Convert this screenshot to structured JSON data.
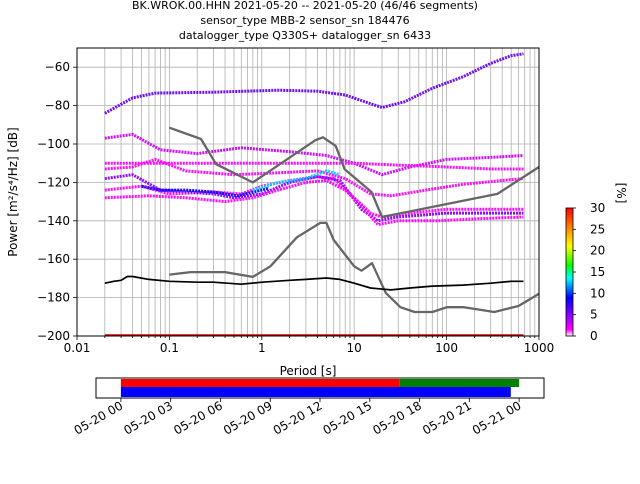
{
  "title": {
    "line1": "BK.WROK.00.HHN   2021-05-20 -- 2021-05-20  (46/46 segments)",
    "line2": "sensor_type MBB-2 sensor_sn 184476",
    "line3": "datalogger_type Q330S+ datalogger_sn 6433"
  },
  "chart_data": [
    {
      "type": "heatmap",
      "xlabel": "Period [s]",
      "ylabel": "Power [m²/s⁴/Hz] [dB]",
      "xscale": "log",
      "xlim": [
        0.01,
        1000
      ],
      "ylim": [
        -200,
        -50
      ],
      "xtick_labels": [
        "0.01",
        "0.1",
        "1",
        "10",
        "100",
        "1000"
      ],
      "ytick_labels": [
        "-60",
        "-80",
        "-100",
        "-120",
        "-140",
        "-160",
        "-180",
        "-200"
      ],
      "grid": true,
      "colorbar": {
        "label": "[%]",
        "range": [
          0,
          30
        ],
        "tick_labels": [
          "0",
          "5",
          "10",
          "15",
          "20",
          "25",
          "30"
        ],
        "colormap": [
          "#ffffff",
          "#ff00ff",
          "#0000ff",
          "#00ffff",
          "#00ff00",
          "#ffff00",
          "#ff7f00",
          "#ff0000"
        ]
      },
      "series": [
        {
          "role": "high noise model",
          "color": "#666666",
          "points": [
            [
              0.1,
              -91.5
            ],
            [
              0.22,
              -97.4
            ],
            [
              0.32,
              -110.5
            ],
            [
              0.8,
              -120
            ],
            [
              3.8,
              -98
            ],
            [
              4.6,
              -96.5
            ],
            [
              6.3,
              -101
            ],
            [
              7.9,
              -113.2
            ],
            [
              15.4,
              -125
            ],
            [
              20,
              -138
            ],
            [
              354.8,
              -126
            ],
            [
              1000,
              -112
            ]
          ]
        },
        {
          "role": "low noise model",
          "color": "#666666",
          "points": [
            [
              0.1,
              -168
            ],
            [
              0.17,
              -166.7
            ],
            [
              0.4,
              -166.7
            ],
            [
              0.8,
              -169.2
            ],
            [
              1.24,
              -163.7
            ],
            [
              2.4,
              -148.6
            ],
            [
              4.3,
              -141.1
            ],
            [
              5,
              -141.1
            ],
            [
              6,
              -150
            ],
            [
              10,
              -163.7
            ],
            [
              12,
              -166
            ],
            [
              15.6,
              -162.1
            ],
            [
              21.9,
              -177.5
            ],
            [
              31.6,
              -185
            ],
            [
              45,
              -187.5
            ],
            [
              70,
              -187.5
            ],
            [
              101,
              -185
            ],
            [
              154,
              -185
            ],
            [
              328,
              -187.5
            ],
            [
              600,
              -184.4
            ],
            [
              1000,
              -178
            ]
          ]
        },
        {
          "role": "mode",
          "color": "#000000",
          "points": [
            [
              0.02,
              -172.5
            ],
            [
              0.025,
              -171.5
            ],
            [
              0.03,
              -171
            ],
            [
              0.035,
              -169
            ],
            [
              0.04,
              -169
            ],
            [
              0.06,
              -170.5
            ],
            [
              0.1,
              -171.5
            ],
            [
              0.2,
              -172
            ],
            [
              0.3,
              -172
            ],
            [
              0.6,
              -173
            ],
            [
              1,
              -172
            ],
            [
              2,
              -171
            ],
            [
              3,
              -170.5
            ],
            [
              5,
              -169.8
            ],
            [
              7,
              -170.5
            ],
            [
              10,
              -172.5
            ],
            [
              15,
              -175
            ],
            [
              25,
              -176
            ],
            [
              40,
              -175
            ],
            [
              70,
              -174
            ],
            [
              150,
              -173.5
            ],
            [
              300,
              -172.5
            ],
            [
              500,
              -171.5
            ],
            [
              680,
              -171.5
            ]
          ]
        }
      ],
      "psd_bands": [
        {
          "color": "#6600ff",
          "points": [
            [
              0.02,
              -84
            ],
            [
              0.04,
              -76
            ],
            [
              0.07,
              -73.5
            ],
            [
              0.3,
              -73
            ],
            [
              1.5,
              -72
            ],
            [
              4,
              -72.5
            ],
            [
              8,
              -74.5
            ],
            [
              15,
              -79
            ],
            [
              20,
              -81
            ],
            [
              35,
              -78
            ],
            [
              70,
              -71
            ],
            [
              150,
              -65
            ],
            [
              300,
              -58
            ],
            [
              500,
              -54
            ],
            [
              680,
              -53
            ]
          ]
        },
        {
          "color": "#cc00ff",
          "points": [
            [
              0.02,
              -97
            ],
            [
              0.04,
              -95
            ],
            [
              0.08,
              -103
            ],
            [
              0.2,
              -105
            ],
            [
              0.6,
              -102
            ],
            [
              2,
              -104
            ],
            [
              5,
              -106
            ],
            [
              10,
              -110
            ],
            [
              20,
              -116
            ],
            [
              40,
              -112
            ],
            [
              100,
              -108
            ],
            [
              300,
              -107
            ],
            [
              680,
              -106
            ]
          ]
        },
        {
          "color": "#ff00ff",
          "points": [
            [
              0.02,
              -110
            ],
            [
              0.05,
              -110
            ],
            [
              0.2,
              -110
            ],
            [
              1,
              -110
            ],
            [
              5,
              -110
            ],
            [
              10,
              -110
            ],
            [
              30,
              -111
            ],
            [
              100,
              -112
            ],
            [
              300,
              -113
            ],
            [
              680,
              -113
            ]
          ]
        },
        {
          "color": "#ff00ff",
          "points": [
            [
              0.02,
              -113
            ],
            [
              0.04,
              -112
            ],
            [
              0.07,
              -108
            ],
            [
              0.15,
              -114
            ],
            [
              0.5,
              -116
            ],
            [
              1.5,
              -115
            ],
            [
              4,
              -114
            ],
            [
              8,
              -118
            ],
            [
              15,
              -126
            ],
            [
              25,
              -127
            ],
            [
              60,
              -124
            ],
            [
              150,
              -121
            ],
            [
              400,
              -119
            ],
            [
              680,
              -118
            ]
          ]
        },
        {
          "color": "#ff00ff",
          "points": [
            [
              0.02,
              -124
            ],
            [
              0.05,
              -122
            ],
            [
              0.1,
              -126
            ],
            [
              0.3,
              -125
            ],
            [
              0.6,
              -126
            ],
            [
              1,
              -122
            ],
            [
              2,
              -119
            ],
            [
              4,
              -117
            ],
            [
              6,
              -118
            ],
            [
              10,
              -128
            ],
            [
              15,
              -136
            ],
            [
              20,
              -138
            ],
            [
              40,
              -136
            ],
            [
              100,
              -134
            ],
            [
              300,
              -134
            ],
            [
              680,
              -134
            ]
          ]
        },
        {
          "color": "#8800ff",
          "points": [
            [
              0.02,
              -118
            ],
            [
              0.04,
              -116
            ],
            [
              0.08,
              -124
            ],
            [
              0.3,
              -126
            ],
            [
              0.5,
              -128
            ],
            [
              1,
              -126
            ],
            [
              2,
              -120
            ],
            [
              4,
              -117
            ],
            [
              7,
              -119
            ],
            [
              12,
              -134
            ],
            [
              18,
              -140
            ],
            [
              30,
              -138
            ],
            [
              100,
              -136
            ],
            [
              300,
              -136
            ],
            [
              680,
              -136
            ]
          ]
        },
        {
          "color": "#0000ff",
          "points": [
            [
              0.05,
              -122
            ],
            [
              0.08,
              -124
            ],
            [
              0.15,
              -124
            ],
            [
              0.3,
              -125
            ],
            [
              0.55,
              -127
            ],
            [
              1.2,
              -123
            ]
          ]
        },
        {
          "color": "#00ccff",
          "points": [
            [
              0.8,
              -124
            ],
            [
              1.5,
              -120
            ],
            [
              3,
              -118
            ],
            [
              5,
              -114
            ],
            [
              7,
              -116
            ]
          ]
        },
        {
          "color": "#ff00ff",
          "points": [
            [
              0.02,
              -128
            ],
            [
              0.06,
              -127
            ],
            [
              0.15,
              -128
            ],
            [
              0.4,
              -130
            ],
            [
              0.8,
              -128
            ],
            [
              1.5,
              -124
            ],
            [
              3,
              -120
            ],
            [
              5,
              -119
            ],
            [
              8,
              -124
            ],
            [
              12,
              -132
            ],
            [
              18,
              -142
            ],
            [
              30,
              -140
            ],
            [
              80,
              -140
            ],
            [
              200,
              -139
            ],
            [
              680,
              -138
            ]
          ]
        }
      ],
      "floor_line": {
        "y": -200,
        "color": "#cc0000",
        "x_range": [
          0.02,
          680
        ]
      }
    },
    {
      "type": "timeline",
      "xtick_labels": [
        "05-20 00",
        "05-20 03",
        "05-20 06",
        "05-20 09",
        "05-20 12",
        "05-20 15",
        "05-20 18",
        "05-20 21",
        "05-21 00"
      ],
      "x_range_hours": [
        -1.5,
        25.5
      ],
      "bars": [
        {
          "color": "#ff0000",
          "start_h": 0,
          "end_h": 16.8
        },
        {
          "color": "#008000",
          "start_h": 16.8,
          "end_h": 24.0
        },
        {
          "color": "#0000ff",
          "start_h": 0,
          "end_h": 23.5
        }
      ]
    }
  ]
}
